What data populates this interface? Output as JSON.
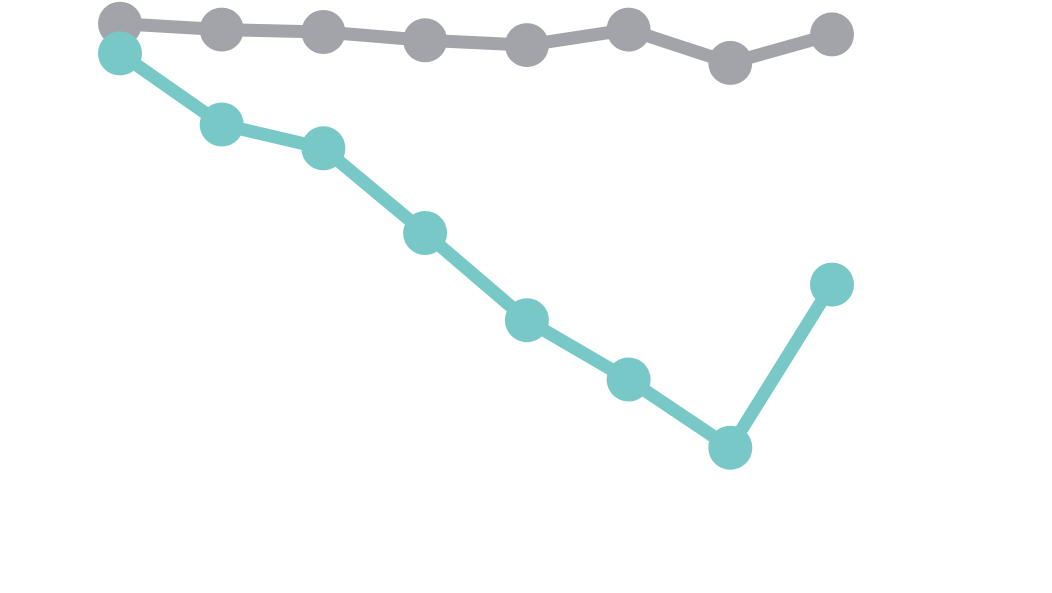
{
  "chart_data": {
    "type": "line",
    "title": "",
    "xlabel": "",
    "ylabel": "",
    "x": [
      1,
      2,
      3,
      4,
      5,
      6,
      7,
      8
    ],
    "xlim": [
      0.5,
      8.8
    ],
    "ylim": [
      0,
      100
    ],
    "grid": false,
    "legend": "none",
    "series": [
      {
        "color": "#a3a3aa",
        "values": [
          96.0,
          95.0,
          94.6,
          93.2,
          92.4,
          95.0,
          89.4,
          94.2
        ]
      },
      {
        "color": "#78c8c7",
        "values": [
          91.0,
          79.0,
          75.0,
          60.7,
          46.0,
          36.0,
          24.5,
          52.0
        ]
      }
    ]
  }
}
